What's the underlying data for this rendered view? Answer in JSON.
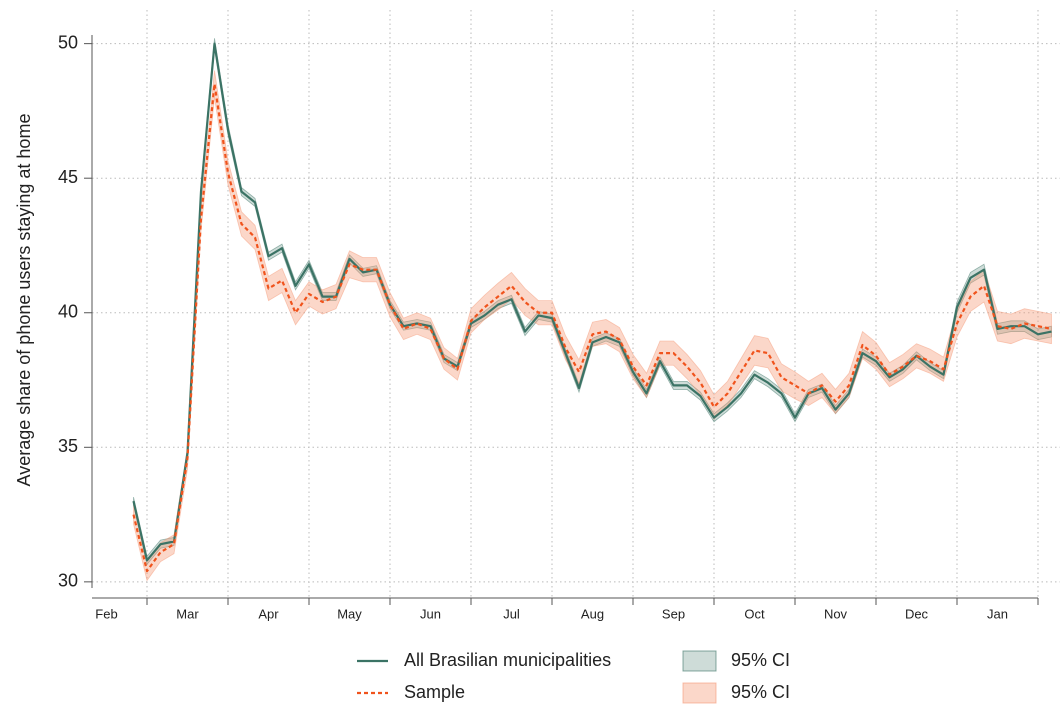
{
  "chart_data": {
    "type": "line",
    "y_label": "Average share of phone users staying at home",
    "categories": [
      "Feb",
      null,
      null,
      null,
      null,
      null,
      "Mar",
      null,
      null,
      null,
      null,
      null,
      "Apr",
      null,
      null,
      null,
      null,
      null,
      "May",
      null,
      null,
      null,
      null,
      null,
      "Jun",
      null,
      null,
      null,
      null,
      null,
      "Jul",
      null,
      null,
      null,
      null,
      null,
      "Aug",
      null,
      null,
      null,
      null,
      null,
      "Sep",
      null,
      null,
      null,
      null,
      null,
      "Oct",
      null,
      null,
      null,
      null,
      null,
      "Nov",
      null,
      null,
      null,
      null,
      null,
      "Dec",
      null,
      null,
      null,
      null,
      null,
      "Jan",
      null,
      null,
      null,
      null
    ],
    "series": [
      {
        "name": "All Brasilian municipalities",
        "color": "#3b7365",
        "dash": false,
        "ci_name": "95% CI",
        "ci_color": "#3b7365",
        "values": [
          null,
          null,
          33.0,
          30.8,
          31.4,
          31.5,
          34.8,
          44.5,
          50.0,
          46.8,
          44.5,
          44.1,
          42.1,
          42.4,
          41.0,
          41.8,
          40.6,
          40.6,
          42.0,
          41.5,
          41.6,
          40.3,
          39.5,
          39.6,
          39.5,
          38.3,
          38.0,
          39.6,
          39.9,
          40.3,
          40.5,
          39.3,
          39.9,
          39.8,
          38.5,
          37.2,
          38.9,
          39.1,
          38.9,
          37.8,
          37.0,
          38.2,
          37.3,
          37.3,
          36.9,
          36.1,
          36.5,
          37.0,
          37.7,
          37.4,
          37.0,
          36.1,
          37.0,
          37.2,
          36.4,
          37.0,
          38.5,
          38.2,
          37.6,
          37.9,
          38.4,
          38.0,
          37.7,
          40.2,
          41.3,
          41.6,
          39.4,
          39.5,
          39.5,
          39.2,
          39.3
        ],
        "ci": [
          null,
          null,
          0.15,
          0.15,
          0.15,
          0.15,
          0.15,
          0.2,
          0.2,
          0.2,
          0.15,
          0.15,
          0.15,
          0.15,
          0.15,
          0.15,
          0.15,
          0.15,
          0.15,
          0.15,
          0.15,
          0.15,
          0.15,
          0.15,
          0.15,
          0.15,
          0.15,
          0.15,
          0.15,
          0.15,
          0.15,
          0.15,
          0.15,
          0.15,
          0.15,
          0.15,
          0.15,
          0.15,
          0.15,
          0.15,
          0.15,
          0.15,
          0.15,
          0.15,
          0.15,
          0.15,
          0.15,
          0.15,
          0.15,
          0.15,
          0.15,
          0.15,
          0.15,
          0.15,
          0.15,
          0.15,
          0.15,
          0.15,
          0.15,
          0.15,
          0.15,
          0.15,
          0.15,
          0.2,
          0.2,
          0.2,
          0.2,
          0.2,
          0.2,
          0.2,
          0.2
        ]
      },
      {
        "name": "Sample",
        "color": "#f0531c",
        "dash": true,
        "ci_name": "95% CI",
        "ci_color": "#f59a78",
        "values": [
          null,
          null,
          32.5,
          30.4,
          31.1,
          31.4,
          34.6,
          43.5,
          48.5,
          45.2,
          43.3,
          42.8,
          40.9,
          41.2,
          40.0,
          40.7,
          40.4,
          40.6,
          41.8,
          41.6,
          41.6,
          40.3,
          39.4,
          39.6,
          39.4,
          38.3,
          37.9,
          39.7,
          40.2,
          40.6,
          41.0,
          40.4,
          40.0,
          40.0,
          38.7,
          37.8,
          39.2,
          39.3,
          39.0,
          38.0,
          37.3,
          38.5,
          38.5,
          38.0,
          37.4,
          36.5,
          37.0,
          37.8,
          38.6,
          38.5,
          37.6,
          37.3,
          37.0,
          37.3,
          36.7,
          37.3,
          38.8,
          38.4,
          37.7,
          38.0,
          38.4,
          38.2,
          37.9,
          39.6,
          40.6,
          41.0,
          39.5,
          39.4,
          39.6,
          39.5,
          39.4
        ],
        "ci": [
          null,
          null,
          0.35,
          0.35,
          0.35,
          0.35,
          0.4,
          0.45,
          0.5,
          0.45,
          0.45,
          0.45,
          0.45,
          0.45,
          0.45,
          0.45,
          0.45,
          0.45,
          0.5,
          0.45,
          0.45,
          0.45,
          0.4,
          0.4,
          0.4,
          0.4,
          0.4,
          0.45,
          0.45,
          0.5,
          0.5,
          0.5,
          0.45,
          0.45,
          0.45,
          0.45,
          0.45,
          0.45,
          0.45,
          0.45,
          0.45,
          0.45,
          0.45,
          0.45,
          0.45,
          0.45,
          0.45,
          0.5,
          0.55,
          0.55,
          0.5,
          0.5,
          0.45,
          0.45,
          0.45,
          0.45,
          0.5,
          0.5,
          0.45,
          0.45,
          0.45,
          0.45,
          0.45,
          0.5,
          0.55,
          0.6,
          0.55,
          0.55,
          0.55,
          0.55,
          0.55
        ]
      }
    ],
    "ylim": [
      29.4,
      51.25
    ],
    "yticks": [
      30,
      35,
      40,
      45,
      50
    ],
    "grid": true
  }
}
